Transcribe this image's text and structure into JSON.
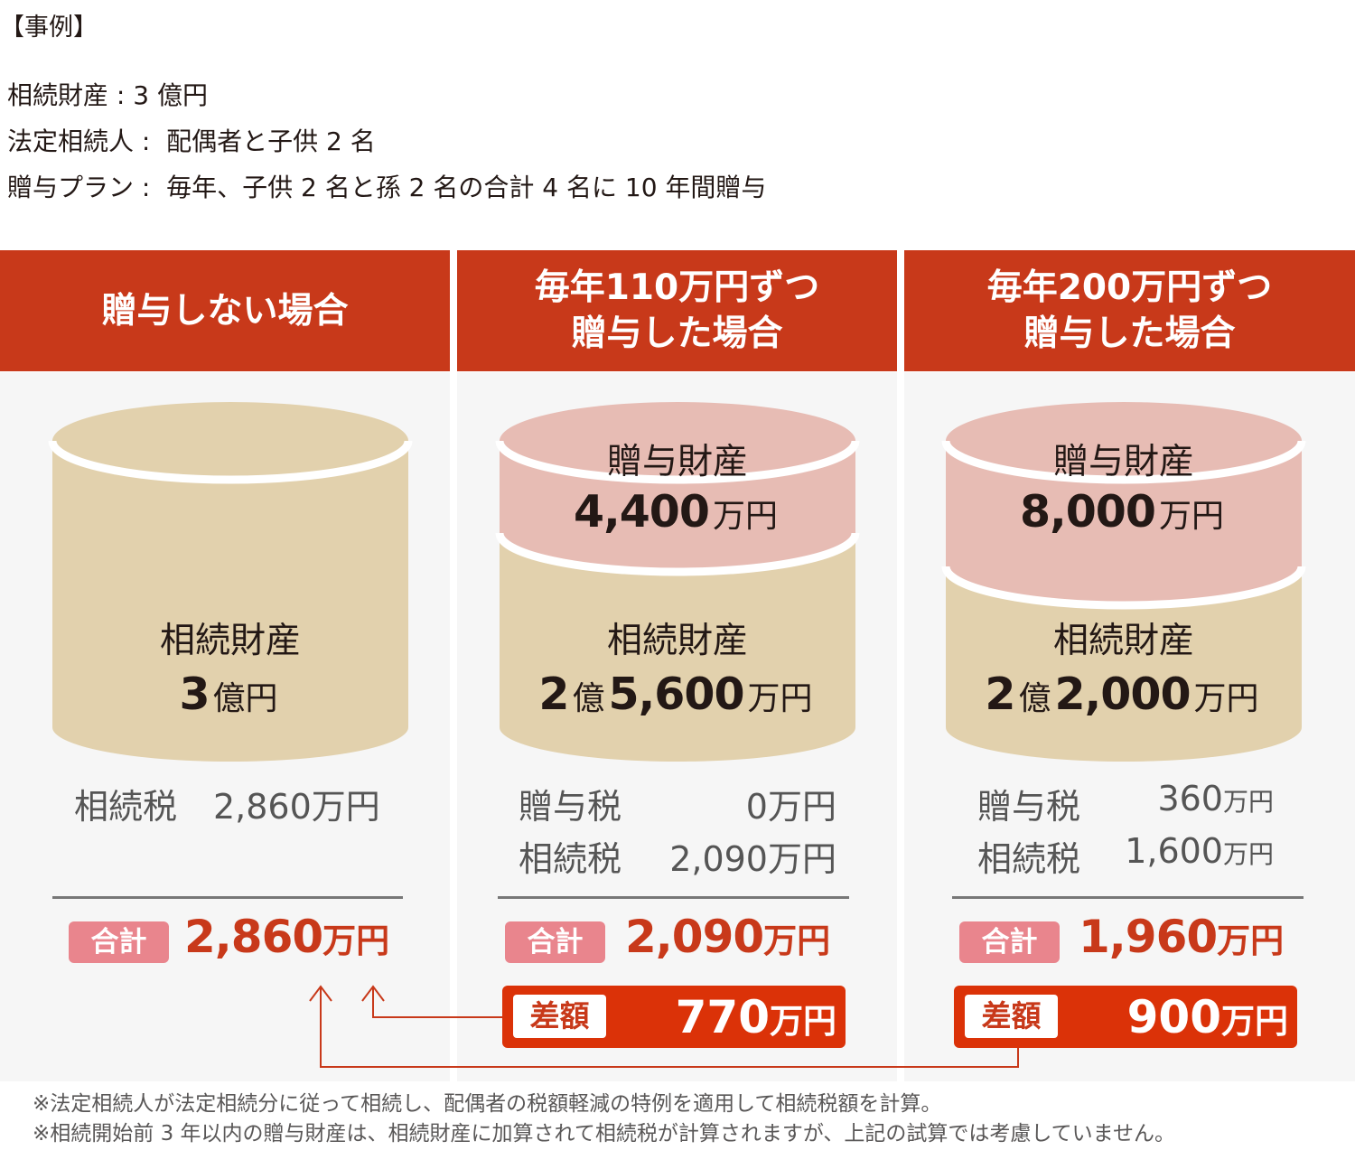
{
  "title": "【事例】",
  "case": {
    "estate": "相続財産 : 3 億円",
    "heirs": "法定相続人 :  配偶者と子供 2 名",
    "plan": "贈与プラン :  毎年、子供 2 名と孫 2 名の合計 4 名に 10 年間贈与"
  },
  "columns": [
    {
      "heading": [
        "贈与しない場合"
      ],
      "gift_label": null,
      "inheritance_label": "相続財産",
      "inheritance_value": {
        "oku": "3",
        "oku_unit": "億円",
        "man": "",
        "man_unit": ""
      },
      "taxes": [
        {
          "label": "相続税",
          "value": "2,860",
          "unit": "万円"
        }
      ],
      "total_label": "合計",
      "total_value": "2,860",
      "total_unit": "万円"
    },
    {
      "heading": [
        "毎年110万円ずつ",
        "贈与した場合"
      ],
      "gift_label": "贈与財産",
      "gift_value": {
        "num": "4,400",
        "unit": "万円"
      },
      "inheritance_label": "相続財産",
      "inheritance_value": {
        "oku": "2",
        "oku_unit": "億",
        "man": "5,600",
        "man_unit": "万円"
      },
      "taxes": [
        {
          "label": "贈与税",
          "value": "0",
          "unit": "万円"
        },
        {
          "label": "相続税",
          "value": "2,090",
          "unit": "万円"
        }
      ],
      "total_label": "合計",
      "total_value": "2,090",
      "total_unit": "万円",
      "diff_label": "差額",
      "diff_value": "770",
      "diff_unit": "万円"
    },
    {
      "heading": [
        "毎年200万円ずつ",
        "贈与した場合"
      ],
      "gift_label": "贈与財産",
      "gift_value": {
        "num": "8,000",
        "unit": "万円"
      },
      "inheritance_label": "相続財産",
      "inheritance_value": {
        "oku": "2",
        "oku_unit": "億",
        "man": "2,000",
        "man_unit": "万円"
      },
      "taxes": [
        {
          "label": "贈与税",
          "value": "360",
          "unit": "万円"
        },
        {
          "label": "相続税",
          "value": "1,600",
          "unit": "万円"
        }
      ],
      "total_label": "合計",
      "total_value": "1,960",
      "total_unit": "万円",
      "diff_label": "差額",
      "diff_value": "900",
      "diff_unit": "万円"
    }
  ],
  "notes": [
    "※法定相続人が法定相続分に従って相続し、配偶者の税額軽減の特例を適用して相続税額を計算。",
    "※相続開始前 3 年以内の贈与財産は、相続財産に加算されて相続税が計算されますが、上記の試算では考慮していません。"
  ],
  "colors": {
    "header_red": "#c8391a",
    "diff_red": "#db3208",
    "total_pink": "#e9858d",
    "cylinder_tan": "#e2d1ad",
    "cylinder_pink": "#e7bcb4",
    "panel_gray": "#f6f6f6"
  }
}
